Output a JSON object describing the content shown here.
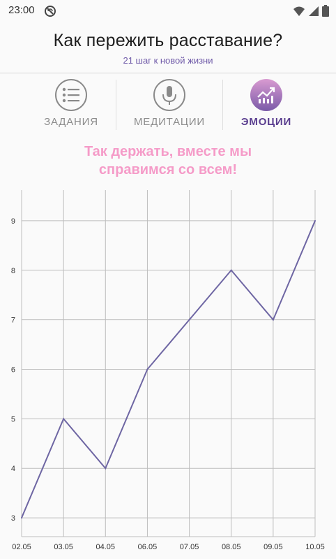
{
  "status_bar": {
    "time": "23:00",
    "dnd_icon": "do-not-disturb-icon",
    "wifi_icon": "wifi-icon",
    "signal_icon": "signal-icon",
    "battery_icon": "battery-icon"
  },
  "header": {
    "title": "Как пережить расставание?",
    "subtitle": "21 шаг к новой жизни"
  },
  "tabs": [
    {
      "label": "ЗАДАНИЯ",
      "icon": "checklist-icon",
      "active": false
    },
    {
      "label": "МЕДИТАЦИИ",
      "icon": "microphone-icon",
      "active": false
    },
    {
      "label": "ЭМОЦИИ",
      "icon": "trending-up-icon",
      "active": true
    }
  ],
  "motivation": {
    "line1": "Так держать, вместе мы",
    "line2": "справимся со всем!"
  },
  "colors": {
    "accent": "#5a3e8f",
    "line": "#6e66a3",
    "pink": "#f59bc8",
    "subtitle": "#6f5aa8"
  },
  "chart_data": {
    "type": "line",
    "title": "",
    "xlabel": "",
    "ylabel": "",
    "categories": [
      "02.05",
      "03.05",
      "04.05",
      "06.05",
      "07.05",
      "08.05",
      "09.05",
      "10.05"
    ],
    "values": [
      3,
      5,
      4,
      6,
      7,
      8,
      7,
      9
    ],
    "y_ticks": [
      "3",
      "4",
      "5",
      "6",
      "7",
      "8",
      "9"
    ],
    "ylim": [
      2.62,
      9.62
    ],
    "grid": true,
    "legend": "none"
  }
}
